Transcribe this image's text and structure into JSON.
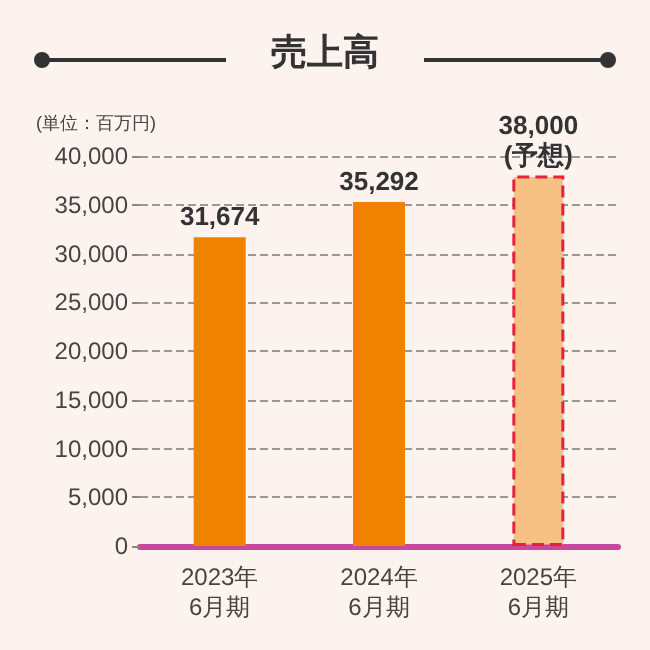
{
  "chart_data": {
    "type": "bar",
    "title": "売上高",
    "ylabel": "(単位：百万円)",
    "categories": [
      "2023年\n6月期",
      "2024年\n6月期",
      "2025年\n6月期"
    ],
    "values": [
      31674,
      35292,
      38000
    ],
    "colors": [
      "#ef8200",
      "#ef8200",
      "#f7c184"
    ],
    "value_labels": [
      "31,674",
      "35,292",
      "38,000\n(予想)"
    ],
    "ylim": [
      0,
      40000
    ],
    "yticks": [
      {
        "value": 0,
        "label": "0"
      },
      {
        "value": 5000,
        "label": "5,000"
      },
      {
        "value": 10000,
        "label": "10,000"
      },
      {
        "value": 15000,
        "label": "15,000"
      },
      {
        "value": 20000,
        "label": "20,000"
      },
      {
        "value": 25000,
        "label": "25,000"
      },
      {
        "value": 30000,
        "label": "30,000"
      },
      {
        "value": 35000,
        "label": "35,000"
      },
      {
        "value": 40000,
        "label": "40,000"
      }
    ],
    "grid": "y"
  }
}
